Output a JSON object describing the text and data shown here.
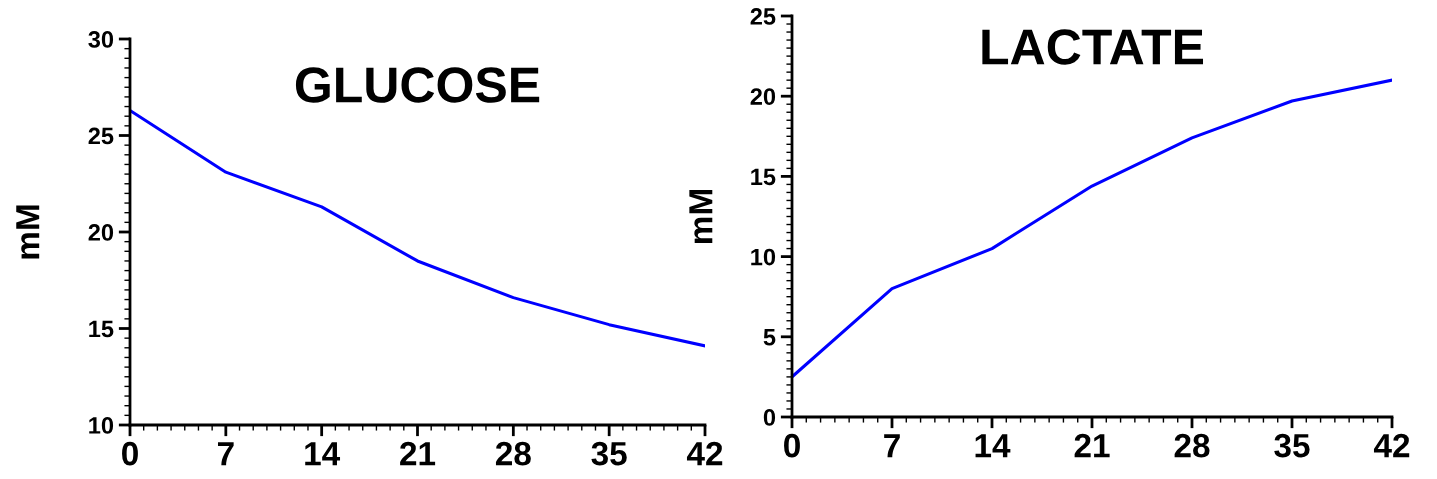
{
  "chart_data": [
    {
      "type": "line",
      "title": "GLUCOSE",
      "ylabel": "mM",
      "x": [
        0,
        7,
        14,
        21,
        28,
        35,
        42
      ],
      "series": [
        {
          "color": "#0000ff",
          "values": [
            26.3,
            23.1,
            21.3,
            18.5,
            16.6,
            15.2,
            14.1
          ]
        }
      ],
      "xlim": [
        0,
        42
      ],
      "xticks": [
        0,
        7,
        14,
        21,
        28,
        35,
        42
      ],
      "ylim": [
        10,
        30
      ],
      "yticks": [
        10,
        15,
        20,
        25,
        30
      ],
      "grid": false,
      "legend": false,
      "marker": "none",
      "line_style": "solid"
    },
    {
      "type": "line",
      "title": "LACTATE",
      "ylabel": "mM",
      "x": [
        0,
        7,
        14,
        21,
        28,
        35,
        42
      ],
      "series": [
        {
          "color": "#0000ff",
          "values": [
            2.5,
            8.0,
            10.5,
            14.4,
            17.4,
            19.7,
            21.0
          ]
        }
      ],
      "xlim": [
        0,
        42
      ],
      "xticks": [
        0,
        7,
        14,
        21,
        28,
        35,
        42
      ],
      "ylim": [
        0,
        25
      ],
      "yticks": [
        0,
        5,
        10,
        15,
        20,
        25
      ],
      "grid": false,
      "legend": false,
      "marker": "none",
      "line_style": "solid"
    }
  ]
}
